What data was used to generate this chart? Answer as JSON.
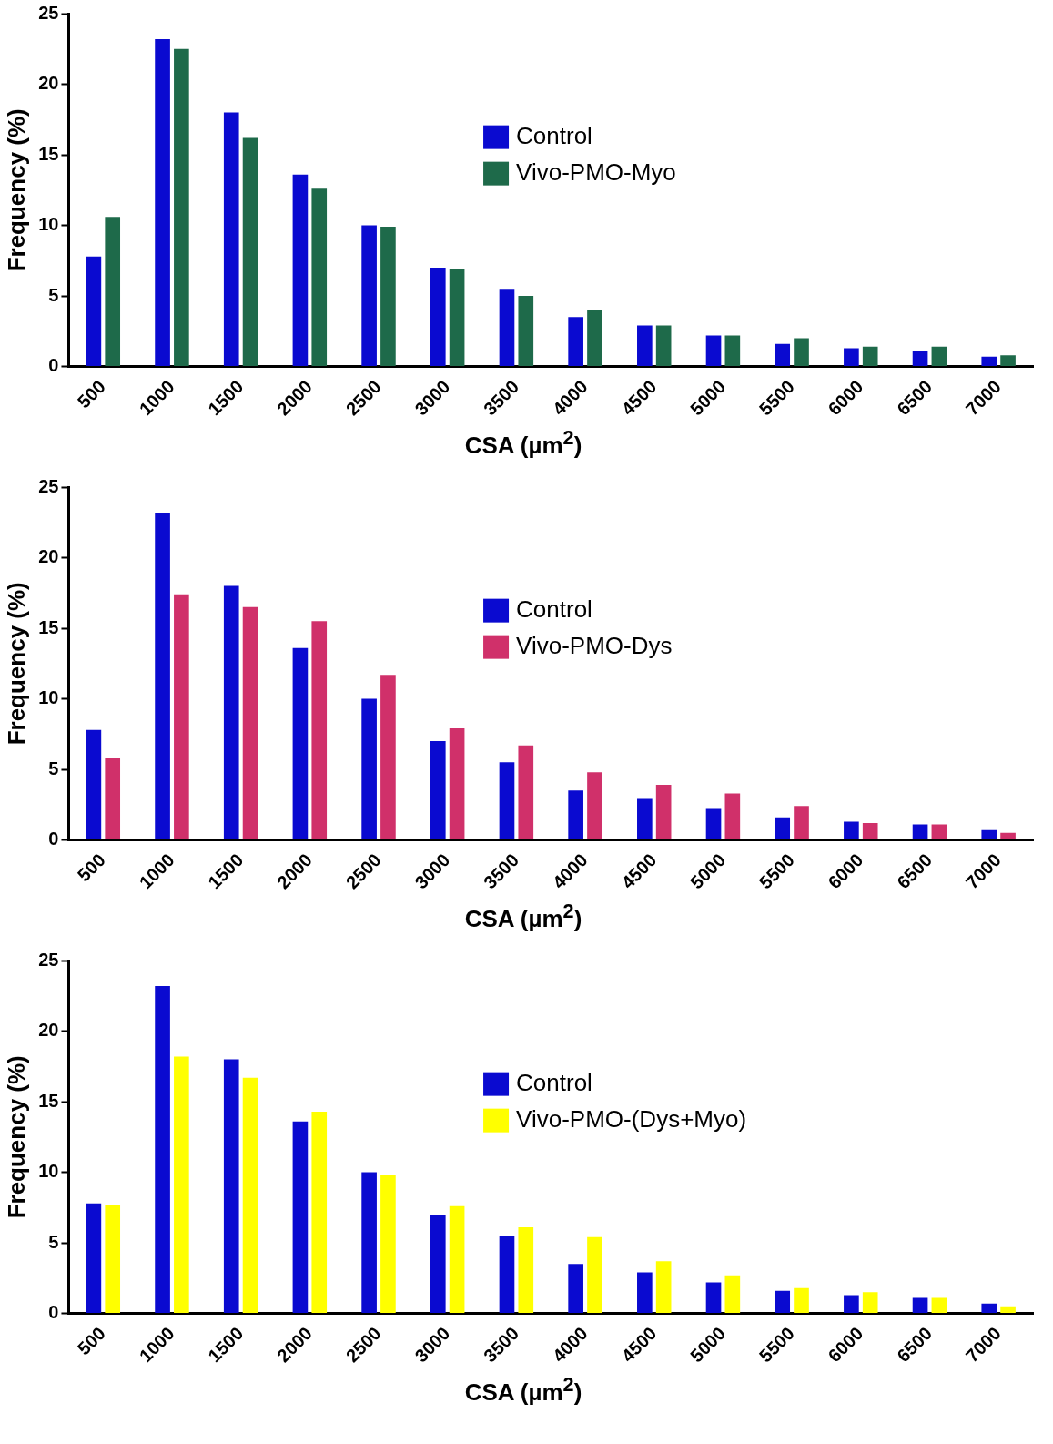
{
  "chart_data": [
    {
      "type": "bar",
      "xlabel": "CSA (µm$^{2}$)",
      "ylabel": "Frequency (%)",
      "categories": [
        "500",
        "1000",
        "1500",
        "2000",
        "2500",
        "3000",
        "3500",
        "4000",
        "4500",
        "5000",
        "5500",
        "6000",
        "6500",
        "7000"
      ],
      "ylim": [
        0,
        25
      ],
      "yticks": [
        0,
        5,
        10,
        15,
        20,
        25
      ],
      "legend": "center",
      "series": [
        {
          "name": "Control",
          "color": "#0a0ad0",
          "values": [
            7.8,
            23.2,
            18,
            13.6,
            10,
            7,
            5.5,
            3.5,
            2.9,
            2.2,
            1.6,
            1.3,
            1.1,
            0.7
          ]
        },
        {
          "name": "Vivo-PMO-Myo",
          "color": "#1e6a4a",
          "values": [
            10.6,
            22.5,
            16.2,
            12.6,
            9.9,
            6.9,
            5,
            4,
            2.9,
            2.2,
            2,
            1.4,
            1.4,
            0.8
          ]
        }
      ]
    },
    {
      "type": "bar",
      "xlabel": "CSA (µm$^{2}$)",
      "ylabel": "Frequency (%)",
      "categories": [
        "500",
        "1000",
        "1500",
        "2000",
        "2500",
        "3000",
        "3500",
        "4000",
        "4500",
        "5000",
        "5500",
        "6000",
        "6500",
        "7000"
      ],
      "ylim": [
        0,
        25
      ],
      "yticks": [
        0,
        5,
        10,
        15,
        20,
        25
      ],
      "legend": "center",
      "series": [
        {
          "name": "Control",
          "color": "#0a0ad0",
          "values": [
            7.8,
            23.2,
            18,
            13.6,
            10,
            7,
            5.5,
            3.5,
            2.9,
            2.2,
            1.6,
            1.3,
            1.1,
            0.7
          ]
        },
        {
          "name": "Vivo-PMO-Dys",
          "color": "#d0306a",
          "values": [
            5.8,
            17.4,
            16.5,
            15.5,
            11.7,
            7.9,
            6.7,
            4.8,
            3.9,
            3.3,
            2.4,
            1.2,
            1.1,
            0.5
          ]
        }
      ]
    },
    {
      "type": "bar",
      "xlabel": "CSA (µm$^{2}$)",
      "ylabel": "Frequency (%)",
      "categories": [
        "500",
        "1000",
        "1500",
        "2000",
        "2500",
        "3000",
        "3500",
        "4000",
        "4500",
        "5000",
        "5500",
        "6000",
        "6500",
        "7000"
      ],
      "ylim": [
        0,
        25
      ],
      "yticks": [
        0,
        5,
        10,
        15,
        20,
        25
      ],
      "legend": "center",
      "series": [
        {
          "name": "Control",
          "color": "#0a0ad0",
          "values": [
            7.8,
            23.2,
            18,
            13.6,
            10,
            7,
            5.5,
            3.5,
            2.9,
            2.2,
            1.6,
            1.3,
            1.1,
            0.7
          ]
        },
        {
          "name": "Vivo-PMO-(Dys+Myo)",
          "color": "#ffff00",
          "values": [
            7.7,
            18.2,
            16.7,
            14.3,
            9.8,
            7.6,
            6.1,
            5.4,
            3.7,
            2.7,
            1.8,
            1.5,
            1.1,
            0.5
          ]
        }
      ]
    }
  ]
}
